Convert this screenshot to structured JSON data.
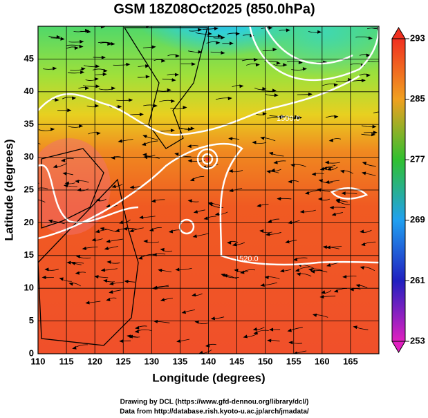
{
  "chart_data": {
    "type": "map",
    "title": "GSM 18Z08Oct2025 (850.0hPa)",
    "x_label": "Longitude (degrees)",
    "y_label": "Latitude  (degrees)",
    "xlim": [
      110,
      170
    ],
    "ylim": [
      0,
      50
    ],
    "xticks": [
      110,
      115,
      120,
      125,
      130,
      135,
      140,
      145,
      150,
      155,
      160,
      165
    ],
    "yticks": [
      0,
      5,
      10,
      15,
      20,
      25,
      30,
      35,
      40,
      45
    ],
    "grid": true,
    "colorbar": {
      "lim": [
        253,
        293
      ],
      "ticks": [
        253,
        261,
        269,
        277,
        285,
        293
      ]
    },
    "contour_labels": [
      "1500.0",
      "1520.0"
    ],
    "credits": [
      "Drawing by DCL (https://www.gfd-dennou.org/library/dcl/)",
      "Data from http://database.rish.kyoto-u.ac.jp/arch/jmadata/"
    ]
  }
}
